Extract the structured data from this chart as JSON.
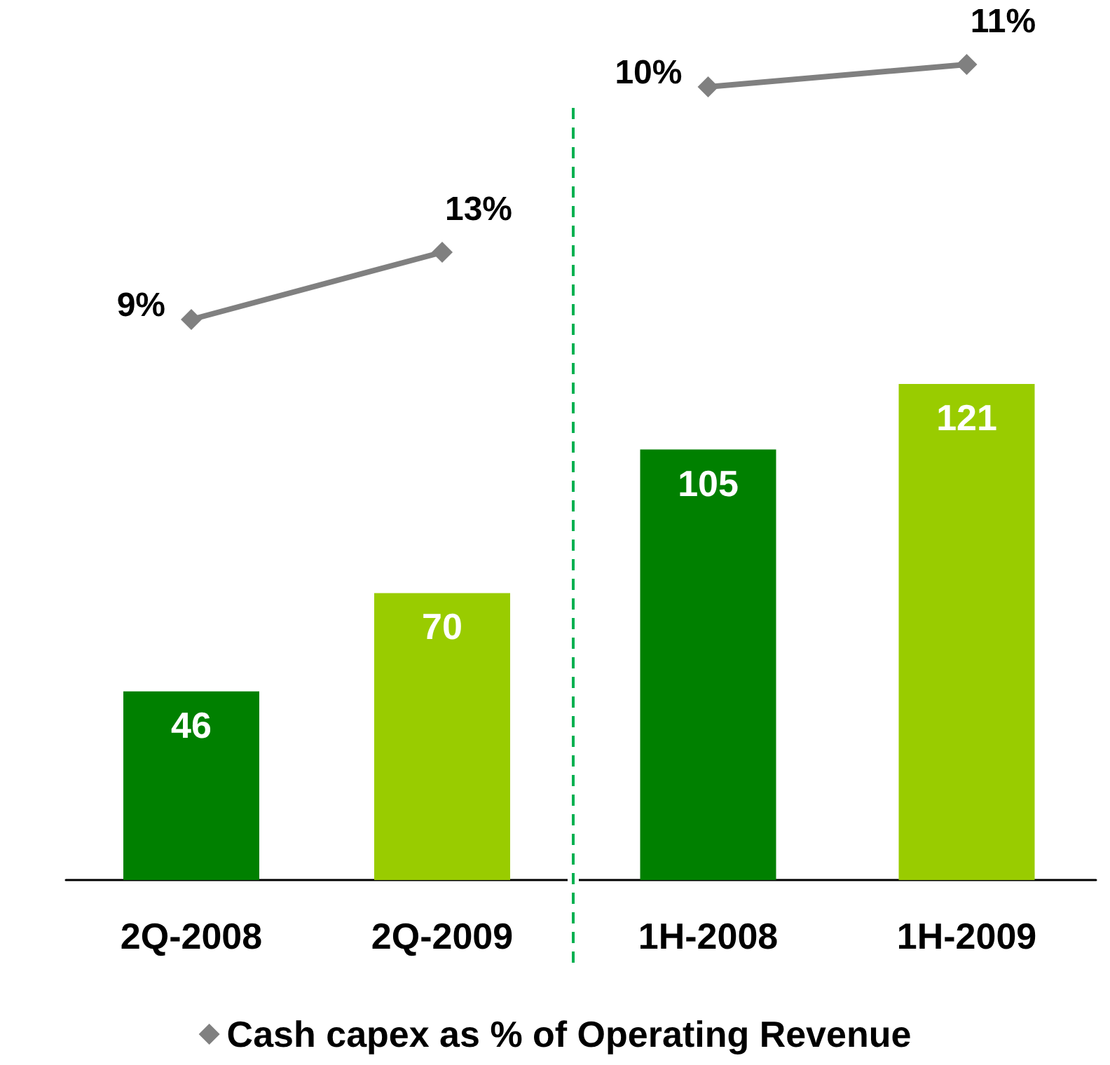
{
  "chart_data": [
    {
      "type": "line",
      "categories": [
        null,
        null
      ],
      "series": [
        {
          "name": "Cash capex as % of Operating Revenue",
          "color": "#808080",
          "values": [
            9,
            13
          ],
          "value_labels": [
            "9%",
            "13%"
          ]
        }
      ],
      "legend": "bottom",
      "marker": "diamond",
      "line_style": "solid"
    },
    {
      "type": "line",
      "categories": [
        null,
        null
      ],
      "series": [
        {
          "color": "#808080",
          "values": [
            10,
            11
          ],
          "value_labels": [
            "10%",
            "11%"
          ]
        }
      ],
      "marker": "diamond",
      "line_style": "solid"
    },
    {
      "type": "bar",
      "categories": [
        "2Q-2008",
        "2Q-2009"
      ],
      "series": [
        {
          "values": [
            46,
            70
          ],
          "colors": [
            "#008000",
            "#99cc00"
          ]
        }
      ],
      "tick_labels": "x",
      "data_labels": true
    },
    {
      "type": "bar",
      "categories": [
        "1H-2008",
        "1H-2009"
      ],
      "series": [
        {
          "values": [
            105,
            121
          ],
          "colors": [
            "#008000",
            "#99cc00"
          ]
        }
      ],
      "tick_labels": "x",
      "data_labels": true
    }
  ]
}
